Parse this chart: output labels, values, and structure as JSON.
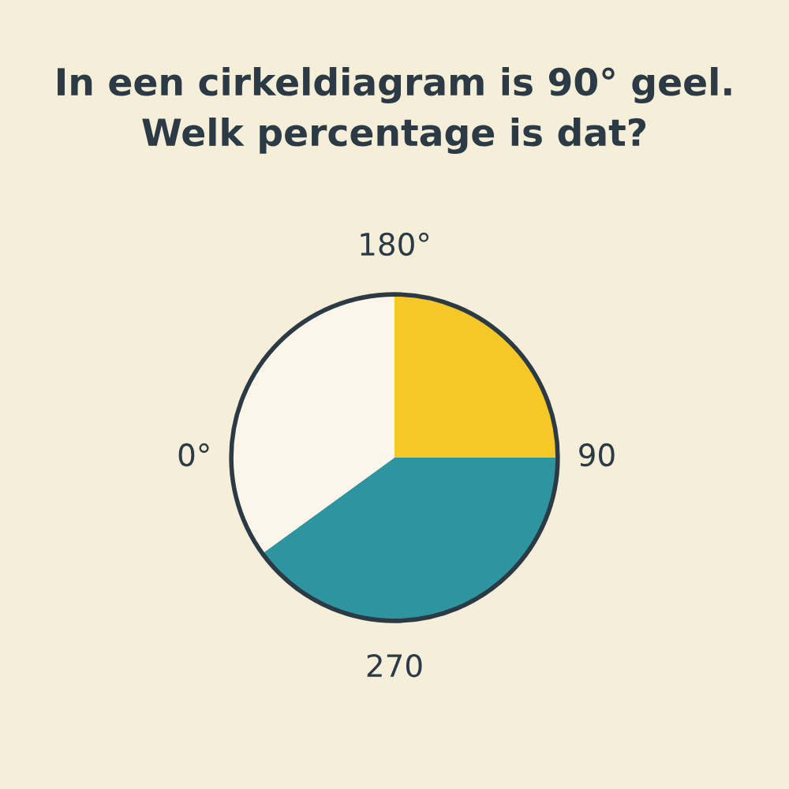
{
  "chart_data": {
    "type": "pie",
    "title": "In een cirkeldiagram is 90° geel.\nWelk percentage is dat?",
    "categories": [
      null,
      null,
      null
    ],
    "values": [
      25,
      40,
      35
    ],
    "colors": [
      "#f5c827",
      "#2e949f",
      "#fbf6e9"
    ],
    "annotations": [
      "180°",
      "90",
      "270",
      "0°"
    ]
  }
}
